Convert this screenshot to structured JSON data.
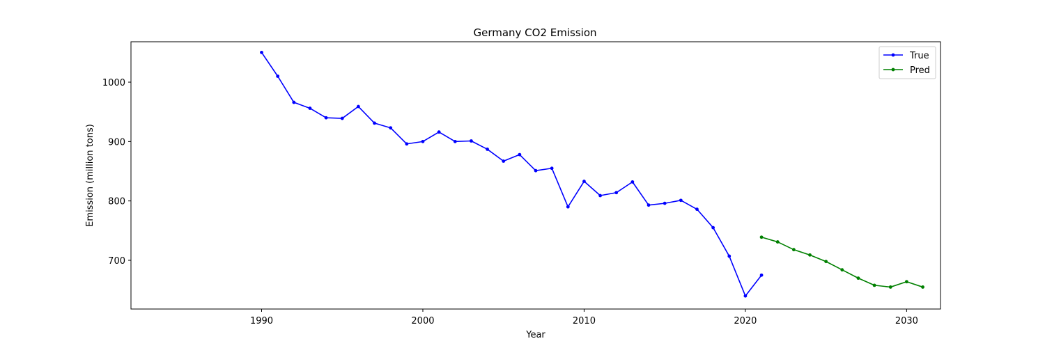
{
  "chart_data": {
    "type": "line",
    "title": "Germany CO2 Emission",
    "xlabel": "Year",
    "ylabel": "Emission (million tons)",
    "xlim": [
      1981.9,
      2032.1
    ],
    "ylim": [
      618,
      1068
    ],
    "xticks": [
      1990,
      2000,
      2010,
      2020,
      2030
    ],
    "yticks": [
      700,
      800,
      900,
      1000
    ],
    "grid": false,
    "legend_position": "top-right",
    "series": [
      {
        "name": "True",
        "color": "#0000ff",
        "marker": "circle",
        "x": [
          1990,
          1991,
          1992,
          1993,
          1994,
          1995,
          1996,
          1997,
          1998,
          1999,
          2000,
          2001,
          2002,
          2003,
          2004,
          2005,
          2006,
          2007,
          2008,
          2009,
          2010,
          2011,
          2012,
          2013,
          2014,
          2015,
          2016,
          2017,
          2018,
          2019,
          2020,
          2021
        ],
        "values": [
          1050,
          1010,
          966,
          956,
          940,
          939,
          959,
          931,
          923,
          896,
          900,
          916,
          900,
          901,
          887,
          867,
          878,
          851,
          855,
          790,
          833,
          809,
          814,
          832,
          793,
          796,
          801,
          786,
          755,
          707,
          640,
          675
        ]
      },
      {
        "name": "Pred",
        "color": "#008000",
        "marker": "circle",
        "x": [
          2021,
          2022,
          2023,
          2024,
          2025,
          2026,
          2027,
          2028,
          2029,
          2030,
          2031
        ],
        "values": [
          739,
          731,
          718,
          709,
          698,
          684,
          670,
          658,
          655,
          664,
          655
        ]
      }
    ]
  }
}
